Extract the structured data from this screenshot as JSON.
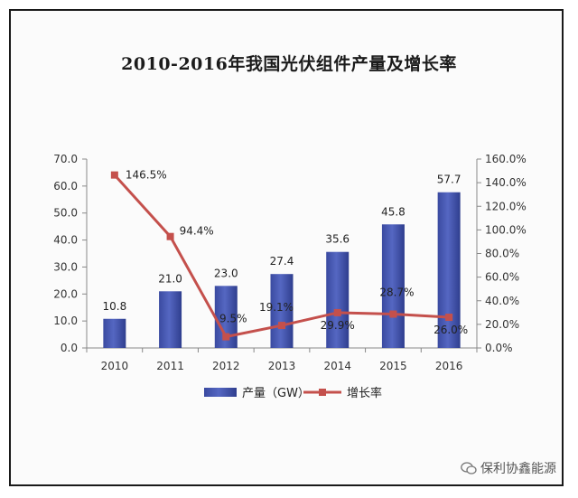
{
  "chart_data": {
    "type": "bar",
    "title": "2010-2016年我国光伏组件产量及增长率",
    "categories": [
      "2010",
      "2011",
      "2012",
      "2013",
      "2014",
      "2015",
      "2016"
    ],
    "series": [
      {
        "name": "产量（GW）",
        "type": "bar",
        "axis": "left",
        "values": [
          10.8,
          21.0,
          23.0,
          27.4,
          35.6,
          45.8,
          57.7
        ],
        "labels": [
          "10.8",
          "21.0",
          "23.0",
          "27.4",
          "35.6",
          "45.8",
          "57.7"
        ],
        "color": "#4a5bb0"
      },
      {
        "name": "增长率",
        "type": "line",
        "axis": "right",
        "values": [
          146.5,
          94.4,
          9.5,
          19.1,
          29.9,
          28.7,
          26.0
        ],
        "labels": [
          "146.5%",
          "94.4%",
          "9.5%",
          "19.1%",
          "29.9%",
          "28.7%",
          "26.0%"
        ],
        "color": "#c4504c"
      }
    ],
    "y_left": {
      "min": 0,
      "max": 70,
      "step": 10,
      "ticks": [
        "0.0",
        "10.0",
        "20.0",
        "30.0",
        "40.0",
        "50.0",
        "60.0",
        "70.0"
      ]
    },
    "y_right": {
      "min": 0,
      "max": 160,
      "step": 20,
      "ticks": [
        "0.0%",
        "20.0%",
        "40.0%",
        "60.0%",
        "80.0%",
        "100.0%",
        "120.0%",
        "140.0%",
        "160.0%"
      ]
    },
    "legend_position": "bottom",
    "grid": false
  },
  "watermark": "保利协鑫能源"
}
